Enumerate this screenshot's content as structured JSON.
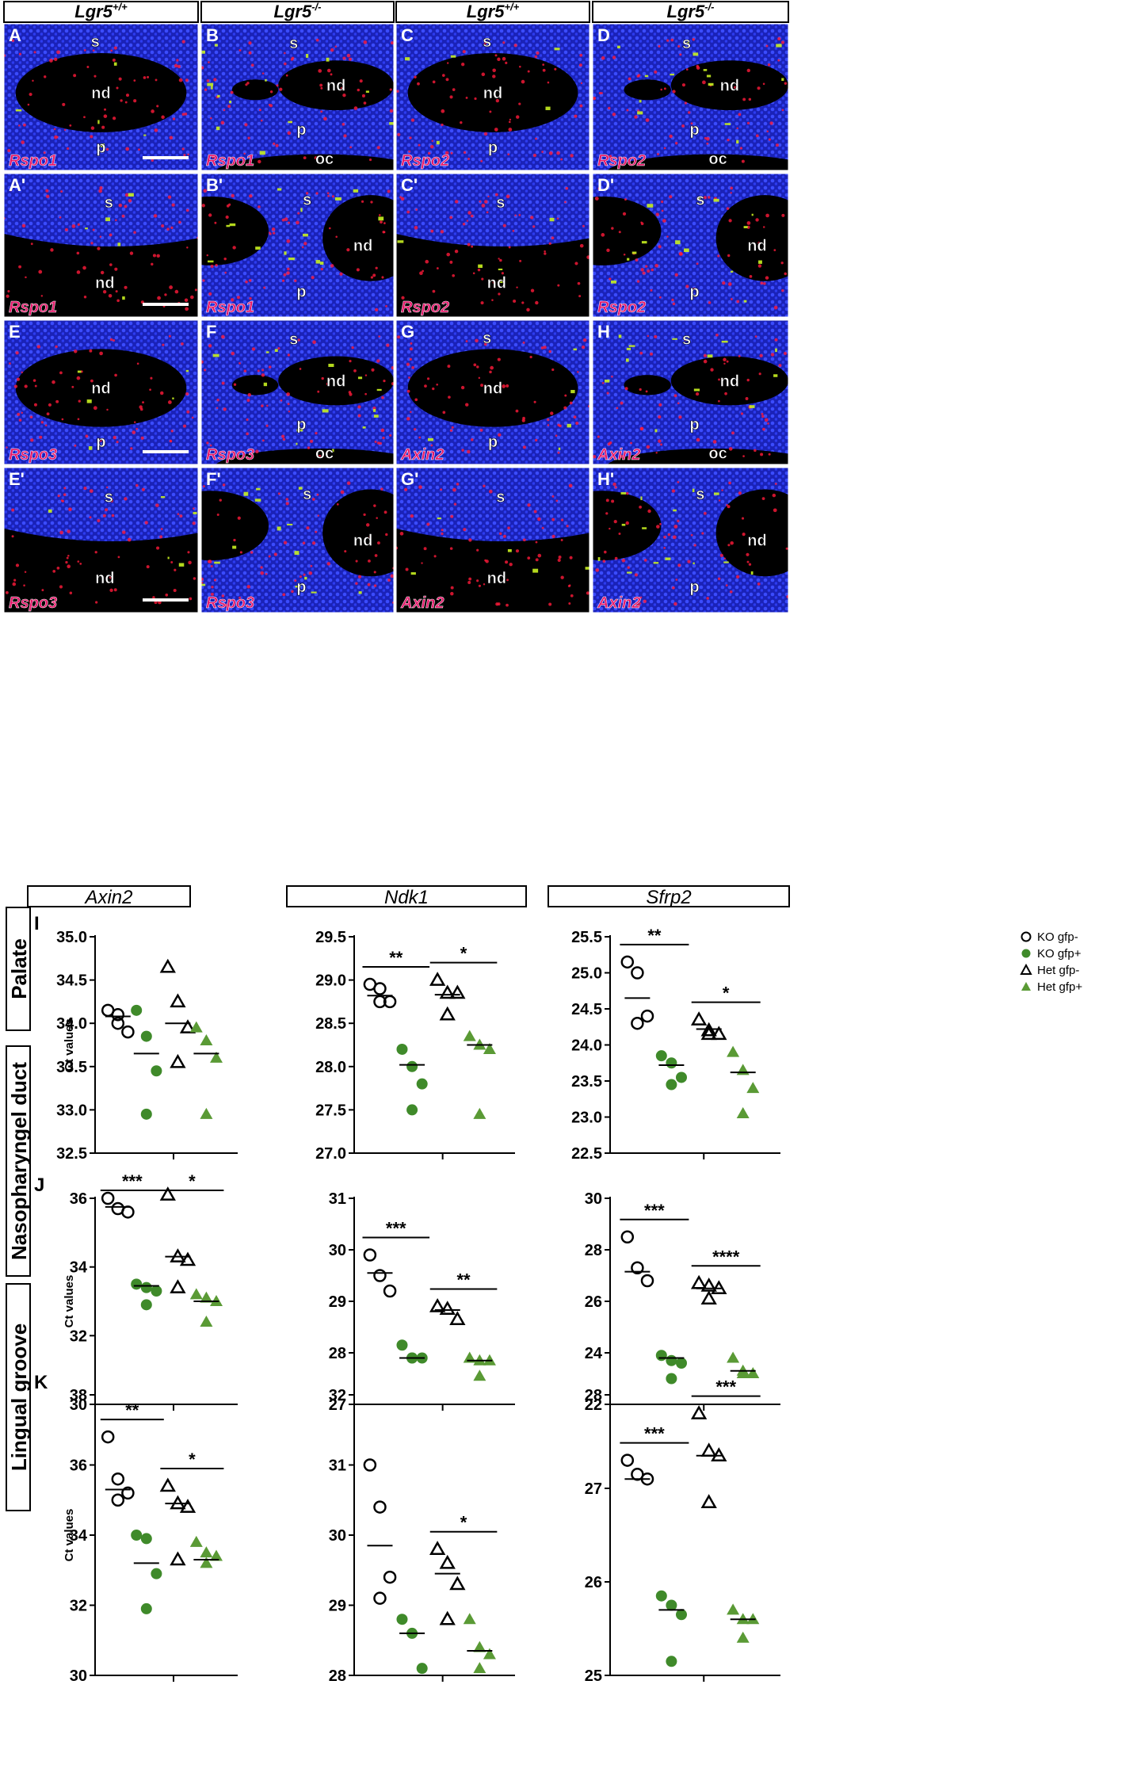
{
  "colors": {
    "nuclei": "#1f2bd6",
    "probe": "#ff1a3a",
    "gfp": "#c8f020",
    "label_text": "#e6176a",
    "ko_marker": "#000000",
    "het_marker": "#000000",
    "gfp_pos_marker": "#3f8a2a",
    "gfp_pos_marker_het": "#5a9a35"
  },
  "micrographs": {
    "headers": [
      "Lgr5+/+",
      "Lgr5-/-",
      "Lgr5+/+",
      "Lgr5-/-"
    ],
    "header_parts": [
      {
        "base": "Lgr5",
        "sup": "+/+"
      },
      {
        "base": "Lgr5",
        "sup": "-/-"
      },
      {
        "base": "Lgr5",
        "sup": "+/+"
      },
      {
        "base": "Lgr5",
        "sup": "-/-"
      }
    ],
    "rows": [
      [
        {
          "letter": "A",
          "probe": "Rspo1",
          "scale_bar": true,
          "regions": [
            "s",
            "nd",
            "p"
          ]
        },
        {
          "letter": "B",
          "probe": "Rspo1",
          "scale_bar": false,
          "regions": [
            "s",
            "nd",
            "p",
            "oc"
          ]
        },
        {
          "letter": "C",
          "probe": "Rspo2",
          "scale_bar": false,
          "regions": [
            "s",
            "nd",
            "p"
          ]
        },
        {
          "letter": "D",
          "probe": "Rspo2",
          "scale_bar": false,
          "regions": [
            "s",
            "nd",
            "p",
            "oc"
          ]
        }
      ],
      [
        {
          "letter": "A'",
          "probe": "Rspo1",
          "scale_bar": true,
          "regions": [
            "s",
            "nd"
          ]
        },
        {
          "letter": "B'",
          "probe": "Rspo1",
          "scale_bar": false,
          "regions": [
            "s",
            "nd",
            "p"
          ]
        },
        {
          "letter": "C'",
          "probe": "Rspo2",
          "scale_bar": false,
          "regions": [
            "s",
            "nd"
          ]
        },
        {
          "letter": "D'",
          "probe": "Rspo2",
          "scale_bar": false,
          "regions": [
            "s",
            "nd",
            "p"
          ]
        }
      ],
      [
        {
          "letter": "E",
          "probe": "Rspo3",
          "scale_bar": true,
          "regions": [
            "nd",
            "p"
          ]
        },
        {
          "letter": "F",
          "probe": "Rspo3",
          "scale_bar": false,
          "regions": [
            "s",
            "nd",
            "p",
            "oc"
          ]
        },
        {
          "letter": "G",
          "probe": "Axin2",
          "scale_bar": false,
          "regions": [
            "s",
            "nd",
            "p"
          ]
        },
        {
          "letter": "H",
          "probe": "Axin2",
          "scale_bar": false,
          "regions": [
            "s",
            "nd",
            "p",
            "oc"
          ]
        }
      ],
      [
        {
          "letter": "E'",
          "probe": "Rspo3",
          "scale_bar": true,
          "regions": [
            "s",
            "nd"
          ]
        },
        {
          "letter": "F'",
          "probe": "Rspo3",
          "scale_bar": false,
          "regions": [
            "s",
            "nd",
            "p"
          ]
        },
        {
          "letter": "G'",
          "probe": "Axin2",
          "scale_bar": false,
          "regions": [
            "s",
            "nd"
          ]
        },
        {
          "letter": "H'",
          "probe": "Axin2",
          "scale_bar": false,
          "regions": [
            "s",
            "nd",
            "p"
          ]
        }
      ]
    ]
  },
  "chart_data": {
    "type": "scatter",
    "column_titles": [
      "Axin2",
      "Ndk1",
      "Sfrp2"
    ],
    "row_labels": [
      "Palate",
      "Nasopharyngel duct",
      "Lingual groove"
    ],
    "row_letters": [
      "I",
      "J",
      "K"
    ],
    "ylabel": "Ct values",
    "legend": {
      "placement": "top-right",
      "entries": [
        {
          "name": "KO gfp-",
          "marker": "circle-open"
        },
        {
          "name": "KO gfp+",
          "marker": "circle-filled"
        },
        {
          "name": "Het gfp-",
          "marker": "triangle-open"
        },
        {
          "name": "Het gfp+",
          "marker": "triangle-filled"
        }
      ]
    },
    "groups": [
      "KO gfp-",
      "KO gfp+",
      "Het gfp-",
      "Het gfp+"
    ],
    "panels": [
      {
        "row": 0,
        "col": 0,
        "ylim": [
          32.5,
          35.0
        ],
        "yticks": [
          32.5,
          33.0,
          33.5,
          34.0,
          34.5,
          35.0
        ],
        "tick_decimals": 1,
        "series": [
          {
            "group": "KO gfp-",
            "values": [
              34.15,
              34.0,
              33.9,
              34.1
            ],
            "mean": 34.08
          },
          {
            "group": "KO gfp+",
            "values": [
              34.15,
              33.85,
              33.45,
              32.95
            ],
            "mean": 33.65
          },
          {
            "group": "Het gfp-",
            "values": [
              34.65,
              34.25,
              33.95,
              33.55
            ],
            "mean": 34.0
          },
          {
            "group": "Het gfp+",
            "values": [
              33.95,
              33.8,
              33.6,
              32.95
            ],
            "mean": 33.65
          }
        ],
        "significance": []
      },
      {
        "row": 0,
        "col": 1,
        "ylim": [
          27.0,
          29.5
        ],
        "yticks": [
          27.0,
          27.5,
          28.0,
          28.5,
          29.0,
          29.5
        ],
        "tick_decimals": 1,
        "series": [
          {
            "group": "KO gfp-",
            "values": [
              28.95,
              28.9,
              28.75,
              28.75
            ],
            "mean": 28.82
          },
          {
            "group": "KO gfp+",
            "values": [
              28.2,
              28.0,
              27.8,
              27.5
            ],
            "mean": 28.02
          },
          {
            "group": "Het gfp-",
            "values": [
              29.0,
              28.85,
              28.85,
              28.6
            ],
            "mean": 28.83
          },
          {
            "group": "Het gfp+",
            "values": [
              28.35,
              28.25,
              28.2,
              27.45
            ],
            "mean": 28.25
          }
        ],
        "significance": [
          {
            "groups": [
              0,
              1
            ],
            "label": "**"
          },
          {
            "groups": [
              2,
              3
            ],
            "label": "*"
          }
        ]
      },
      {
        "row": 0,
        "col": 2,
        "ylim": [
          22.5,
          25.5
        ],
        "yticks": [
          22.5,
          23.0,
          23.5,
          24.0,
          24.5,
          25.0,
          25.5
        ],
        "tick_decimals": 1,
        "series": [
          {
            "group": "KO gfp-",
            "values": [
              25.15,
              25.0,
              24.4,
              24.3
            ],
            "mean": 24.65
          },
          {
            "group": "KO gfp+",
            "values": [
              23.85,
              23.75,
              23.55,
              23.45
            ],
            "mean": 23.72
          },
          {
            "group": "Het gfp-",
            "values": [
              24.35,
              24.2,
              24.15,
              24.15
            ],
            "mean": 24.22
          },
          {
            "group": "Het gfp+",
            "values": [
              23.9,
              23.65,
              23.4,
              23.05
            ],
            "mean": 23.62
          }
        ],
        "significance": [
          {
            "groups": [
              0,
              1
            ],
            "label": "**"
          },
          {
            "groups": [
              2,
              3
            ],
            "label": "*"
          }
        ]
      },
      {
        "row": 1,
        "col": 0,
        "ylim": [
          30,
          36
        ],
        "yticks": [
          30,
          32,
          34,
          36
        ],
        "tick_decimals": 0,
        "series": [
          {
            "group": "KO gfp-",
            "values": [
              36.0,
              35.7,
              35.6
            ],
            "mean": 35.75
          },
          {
            "group": "KO gfp+",
            "values": [
              33.5,
              33.4,
              33.3,
              32.9
            ],
            "mean": 33.45
          },
          {
            "group": "Het gfp-",
            "values": [
              36.1,
              34.3,
              34.2,
              33.4
            ],
            "mean": 34.3
          },
          {
            "group": "Het gfp+",
            "values": [
              33.2,
              33.1,
              33.0,
              32.4
            ],
            "mean": 33.0
          }
        ],
        "significance": [
          {
            "groups": [
              0,
              1
            ],
            "label": "***"
          },
          {
            "groups": [
              2,
              3
            ],
            "label": "*"
          }
        ]
      },
      {
        "row": 1,
        "col": 1,
        "ylim": [
          27,
          31
        ],
        "yticks": [
          27,
          28,
          29,
          30,
          31
        ],
        "tick_decimals": 0,
        "series": [
          {
            "group": "KO gfp-",
            "values": [
              29.9,
              29.5,
              29.2
            ],
            "mean": 29.55
          },
          {
            "group": "KO gfp+",
            "values": [
              28.15,
              27.9,
              27.9,
              27.9
            ],
            "mean": 27.9
          },
          {
            "group": "Het gfp-",
            "values": [
              28.9,
              28.85,
              28.65
            ],
            "mean": 28.83
          },
          {
            "group": "Het gfp+",
            "values": [
              27.9,
              27.85,
              27.85,
              27.55
            ],
            "mean": 27.85
          }
        ],
        "significance": [
          {
            "groups": [
              0,
              1
            ],
            "label": "***"
          },
          {
            "groups": [
              2,
              3
            ],
            "label": "**"
          }
        ]
      },
      {
        "row": 1,
        "col": 2,
        "ylim": [
          22,
          30
        ],
        "yticks": [
          22,
          24,
          26,
          28,
          30
        ],
        "tick_decimals": 0,
        "series": [
          {
            "group": "KO gfp-",
            "values": [
              28.5,
              27.3,
              26.8
            ],
            "mean": 27.15
          },
          {
            "group": "KO gfp+",
            "values": [
              23.9,
              23.7,
              23.6,
              23.0
            ],
            "mean": 23.8
          },
          {
            "group": "Het gfp-",
            "values": [
              26.7,
              26.6,
              26.5,
              26.1
            ],
            "mean": 26.5
          },
          {
            "group": "Het gfp+",
            "values": [
              23.8,
              23.3,
              23.2,
              23.2
            ],
            "mean": 23.3
          }
        ],
        "significance": [
          {
            "groups": [
              0,
              1
            ],
            "label": "***"
          },
          {
            "groups": [
              2,
              3
            ],
            "label": "****"
          }
        ]
      },
      {
        "row": 2,
        "col": 0,
        "ylim": [
          30,
          38
        ],
        "yticks": [
          30,
          32,
          34,
          36,
          38
        ],
        "tick_decimals": 0,
        "series": [
          {
            "group": "KO gfp-",
            "values": [
              36.8,
              35.6,
              35.2,
              35.0
            ],
            "mean": 35.3
          },
          {
            "group": "KO gfp+",
            "values": [
              34.0,
              33.9,
              32.9,
              31.9
            ],
            "mean": 33.2
          },
          {
            "group": "Het gfp-",
            "values": [
              35.4,
              34.9,
              34.8,
              33.3
            ],
            "mean": 34.9
          },
          {
            "group": "Het gfp+",
            "values": [
              33.8,
              33.5,
              33.4,
              33.2
            ],
            "mean": 33.3
          }
        ],
        "significance": [
          {
            "groups": [
              0,
              1
            ],
            "label": "**"
          },
          {
            "groups": [
              2,
              3
            ],
            "label": "*"
          }
        ]
      },
      {
        "row": 2,
        "col": 1,
        "ylim": [
          28,
          32
        ],
        "yticks": [
          28,
          29,
          30,
          31,
          32
        ],
        "tick_decimals": 0,
        "series": [
          {
            "group": "KO gfp-",
            "values": [
              31.0,
              30.4,
              29.4,
              29.1
            ],
            "mean": 29.85
          },
          {
            "group": "KO gfp+",
            "values": [
              28.8,
              28.6,
              28.1
            ],
            "mean": 28.6
          },
          {
            "group": "Het gfp-",
            "values": [
              29.8,
              29.6,
              29.3,
              28.8
            ],
            "mean": 29.45
          },
          {
            "group": "Het gfp+",
            "values": [
              28.8,
              28.4,
              28.3,
              28.1
            ],
            "mean": 28.35
          }
        ],
        "significance": [
          {
            "groups": [
              2,
              3
            ],
            "label": "*"
          }
        ]
      },
      {
        "row": 2,
        "col": 2,
        "ylim": [
          25,
          28
        ],
        "yticks": [
          25,
          26,
          27,
          28
        ],
        "tick_decimals": 0,
        "series": [
          {
            "group": "KO gfp-",
            "values": [
              27.3,
              27.15,
              27.1
            ],
            "mean": 27.1
          },
          {
            "group": "KO gfp+",
            "values": [
              25.85,
              25.75,
              25.65,
              25.15
            ],
            "mean": 25.7
          },
          {
            "group": "Het gfp-",
            "values": [
              27.8,
              27.4,
              27.35,
              26.85
            ],
            "mean": 27.35
          },
          {
            "group": "Het gfp+",
            "values": [
              25.7,
              25.6,
              25.6,
              25.4
            ],
            "mean": 25.6
          }
        ],
        "significance": [
          {
            "groups": [
              0,
              1
            ],
            "label": "***"
          },
          {
            "groups": [
              2,
              3
            ],
            "label": "***"
          }
        ]
      }
    ]
  }
}
